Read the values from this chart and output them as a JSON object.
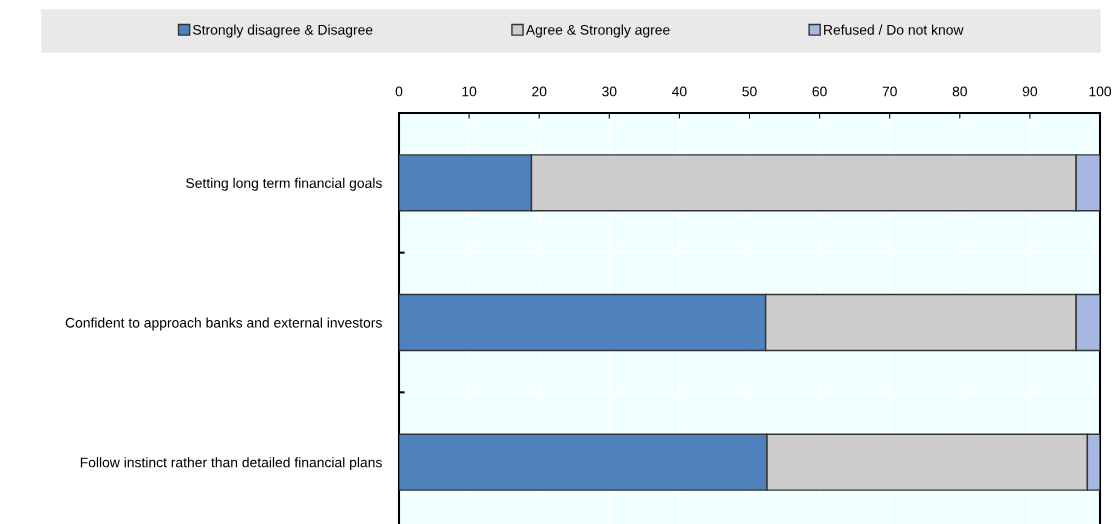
{
  "chart_data": {
    "type": "bar",
    "orientation": "horizontal",
    "stacked": true,
    "categories": [
      "Setting long term financial goals",
      "Confident to approach banks and external investors",
      "Follow instinct rather than detailed financial plans"
    ],
    "series": [
      {
        "name": "Strongly disagree & Disagree",
        "color": "#4f81bd",
        "values": [
          18.9,
          52.3,
          52.5
        ]
      },
      {
        "name": "Agree & Strongly agree",
        "color": "#cccccc",
        "values": [
          77.7,
          44.3,
          45.7
        ]
      },
      {
        "name": "Refused / Do not know",
        "color": "#a6b8e2",
        "values": [
          3.4,
          3.4,
          1.8
        ]
      }
    ],
    "xlim": [
      0,
      100
    ],
    "xticks": [
      0,
      10,
      20,
      30,
      40,
      50,
      60,
      70,
      80,
      90,
      100
    ],
    "grid": true,
    "legend": "top"
  }
}
